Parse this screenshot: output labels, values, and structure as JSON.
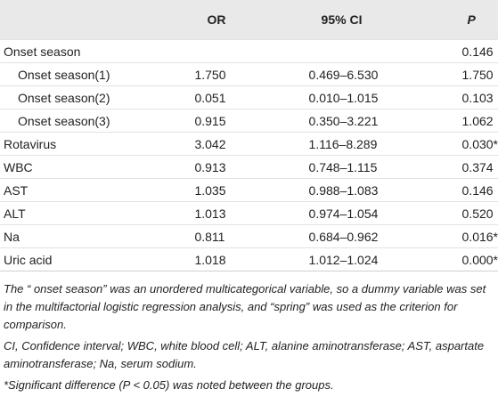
{
  "table": {
    "columns": [
      "OR",
      "95% CI",
      "P"
    ],
    "rows": [
      {
        "label": "Onset season",
        "p": "0.146",
        "sub": [
          {
            "label": "Onset season(1)",
            "or": "1.750",
            "ci": "0.469–6.530",
            "p": "1.750"
          },
          {
            "label": "Onset season(2)",
            "or": "0.051",
            "ci": "0.010–1.015",
            "p": "0.103"
          },
          {
            "label": "Onset season(3)",
            "or": "0.915",
            "ci": "0.350–3.221",
            "p": "1.062"
          }
        ]
      },
      {
        "label": "Rotavirus",
        "or": "3.042",
        "ci": "1.116–8.289",
        "p": "0.030*"
      },
      {
        "label": "WBC",
        "or": "0.913",
        "ci": "0.748–1.115",
        "p": "0.374"
      },
      {
        "label": "AST",
        "or": "1.035",
        "ci": "0.988–1.083",
        "p": "0.146"
      },
      {
        "label": "ALT",
        "or": "1.013",
        "ci": "0.974–1.054",
        "p": "0.520"
      },
      {
        "label": "Na",
        "or": "0.811",
        "ci": "0.684–0.962",
        "p": "0.016*"
      },
      {
        "label": "Uric acid",
        "or": "1.018",
        "ci": "1.012–1.024",
        "p": "0.000*"
      }
    ],
    "notes": [
      "The “ onset season” was an unordered multicategorical variable, so a dummy variable was set in the multifactorial logistic regression analysis, and “spring” was used as the criterion for comparison.",
      "CI, Confidence interval; WBC, white blood cell; ALT, alanine aminotransferase; AST, aspartate aminotransferase; Na, serum sodium.",
      "*Significant difference (P < 0.05) was noted between the groups."
    ]
  }
}
